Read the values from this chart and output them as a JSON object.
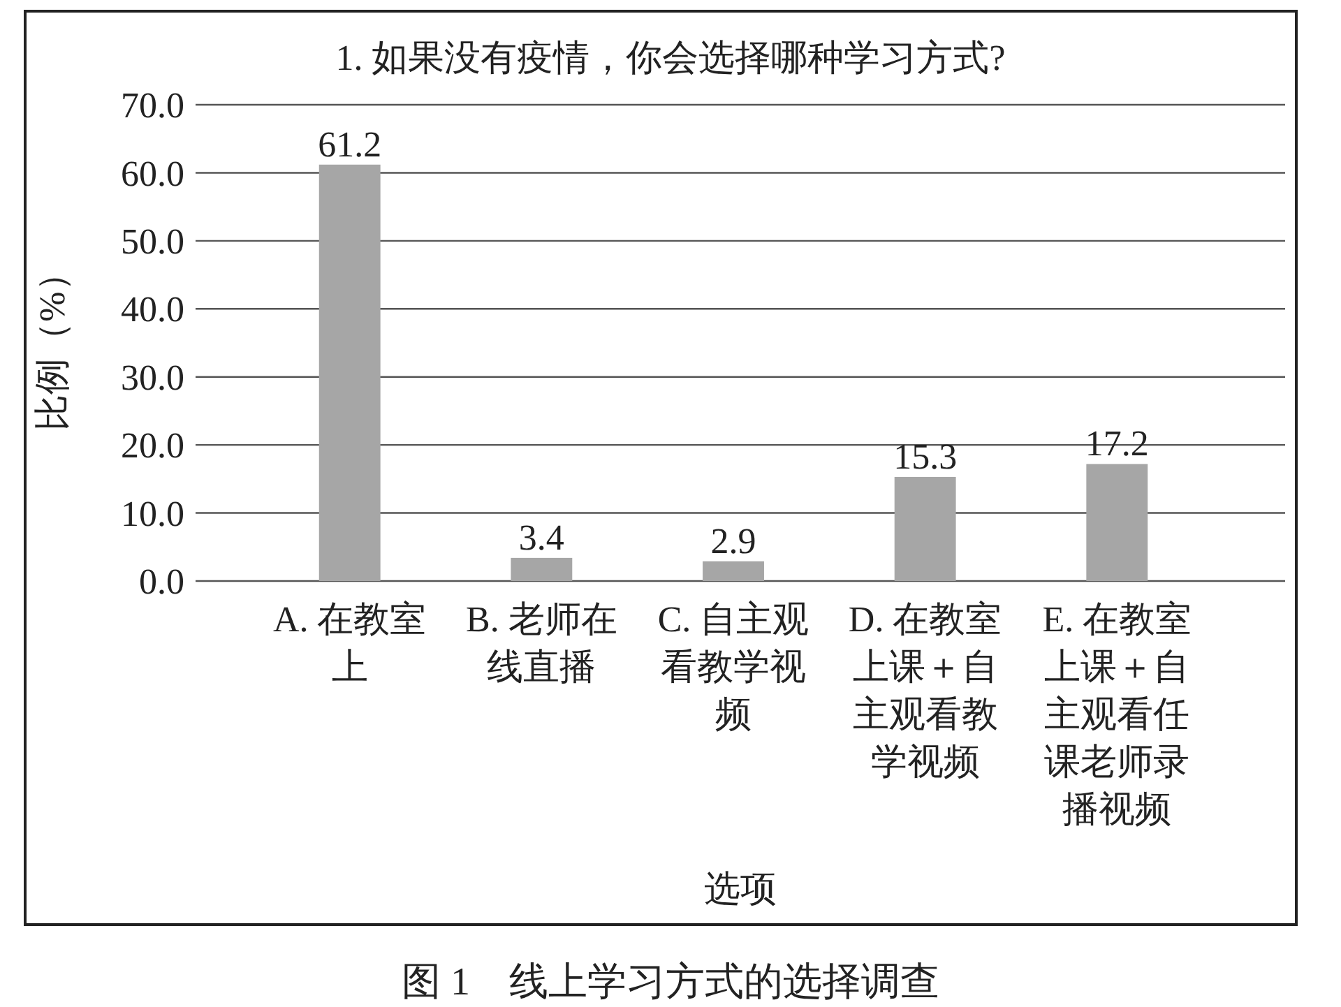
{
  "chart_data": {
    "type": "bar",
    "title": "1. 如果没有疫情，你会选择哪种学习方式?",
    "xlabel": "选项",
    "ylabel": "比例（%）",
    "categories": [
      "A. 在教室上",
      "B. 老师在线直播",
      "C. 自主观看教学视频",
      "D. 在教室上课＋自主观看教学视频",
      "E. 在教室上课＋自主观看任课老师录播视频"
    ],
    "values": [
      61.2,
      3.4,
      2.9,
      15.3,
      17.2
    ],
    "color": "#a6a6a6",
    "data_labels": true,
    "ylim": [
      0,
      70
    ],
    "yticks": [
      {
        "value": 0,
        "label": "0.0"
      },
      {
        "value": 10,
        "label": "10.0"
      },
      {
        "value": 20,
        "label": "20.0"
      },
      {
        "value": 30,
        "label": "30.0"
      },
      {
        "value": 40,
        "label": "40.0"
      },
      {
        "value": 50,
        "label": "50.0"
      },
      {
        "value": 60,
        "label": "60.0"
      },
      {
        "value": 70,
        "label": "70.0"
      }
    ],
    "grid": "y",
    "annotations": [
      "图 1　线上学习方式的选择调查"
    ]
  }
}
